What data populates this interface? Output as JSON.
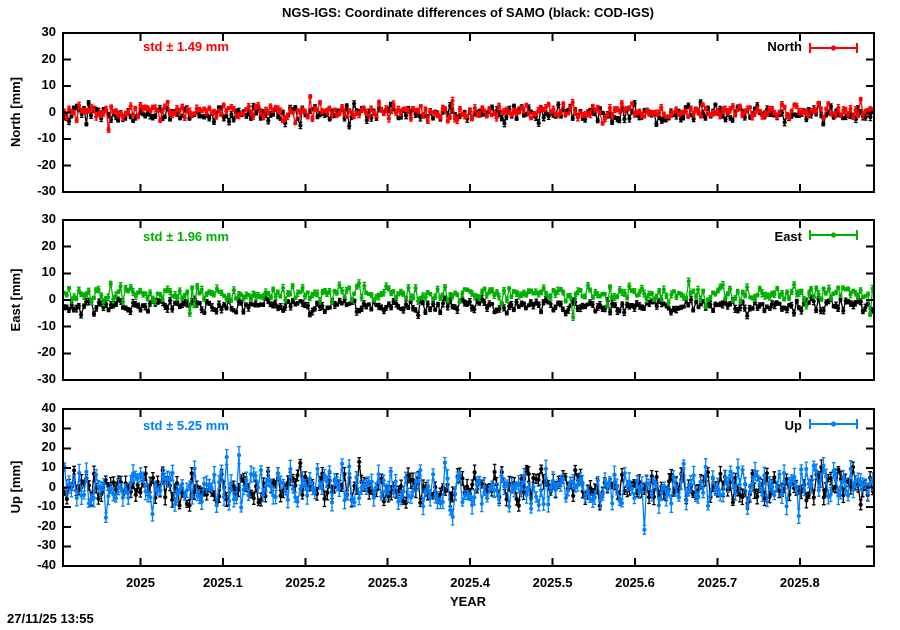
{
  "chart_data": {
    "type": "scatter",
    "title": "NGS-IGS: Coordinate differences of SAMO (black: COD-IGS)",
    "xlabel": "YEAR",
    "timestamp": "27/11/25 13:55",
    "x_range": [
      2024.906,
      2025.89
    ],
    "x_ticks": [
      {
        "v": 2025.0,
        "t": "2025"
      },
      {
        "v": 2025.1,
        "t": "2025.1"
      },
      {
        "v": 2025.2,
        "t": "2025.2"
      },
      {
        "v": 2025.3,
        "t": "2025.3"
      },
      {
        "v": 2025.4,
        "t": "2025.4"
      },
      {
        "v": 2025.5,
        "t": "2025.5"
      },
      {
        "v": 2025.6,
        "t": "2025.6"
      },
      {
        "v": 2025.7,
        "t": "2025.7"
      },
      {
        "v": 2025.8,
        "t": "2025.8"
      }
    ],
    "colors": {
      "black": "#000000",
      "red": "#ff0000",
      "green": "#00b000",
      "blue": "#0080ff"
    },
    "panels": [
      {
        "name": "north",
        "ylabel": "North [mm]",
        "ylim": [
          -30,
          30
        ],
        "y_ticks": [
          {
            "v": 30,
            "t": "30"
          },
          {
            "v": 20,
            "t": "20"
          },
          {
            "v": 10,
            "t": "10"
          },
          {
            "v": 0,
            "t": "0"
          },
          {
            "v": -10,
            "t": "-10"
          },
          {
            "v": -20,
            "t": "-20"
          },
          {
            "v": -30,
            "t": "-30"
          }
        ],
        "std_label": "std ± 1.49 mm",
        "std_mm": 1.49,
        "legend": {
          "label": "North",
          "color": "#ff0000"
        },
        "series": [
          {
            "name": "COD-IGS",
            "color": "#000000",
            "n": 330,
            "mean": -0.5,
            "std": 1.7,
            "err": 0.9,
            "seed": 101,
            "outliers": []
          },
          {
            "name": "NGS-IGS",
            "color": "#ff0000",
            "n": 330,
            "mean": 0.3,
            "std": 1.49,
            "err": 0.9,
            "seed": 202,
            "outliers": [
              [
                2024.962,
                -6.5
              ],
              [
                2025.205,
                6.0
              ],
              [
                2025.875,
                5.0
              ]
            ]
          }
        ]
      },
      {
        "name": "east",
        "ylabel": "East [mm]",
        "ylim": [
          -30,
          30
        ],
        "y_ticks": [
          {
            "v": 30,
            "t": "30"
          },
          {
            "v": 20,
            "t": "20"
          },
          {
            "v": 10,
            "t": "10"
          },
          {
            "v": 0,
            "t": "0"
          },
          {
            "v": -10,
            "t": "-10"
          },
          {
            "v": -20,
            "t": "-20"
          },
          {
            "v": -30,
            "t": "-30"
          }
        ],
        "std_label": "std ± 1.96 mm",
        "std_mm": 1.96,
        "legend": {
          "label": "East",
          "color": "#00b000"
        },
        "series": [
          {
            "name": "COD-IGS",
            "color": "#000000",
            "n": 330,
            "mean": -2.2,
            "std": 1.4,
            "err": 0.9,
            "seed": 303,
            "outliers": []
          },
          {
            "name": "NGS-IGS",
            "color": "#00b000",
            "n": 330,
            "mean": 2.2,
            "std": 1.5,
            "err": 0.9,
            "seed": 404,
            "outliers": [
              [
                2025.06,
                -5.0
              ],
              [
                2025.525,
                -6.5
              ],
              [
                2025.664,
                7.0
              ],
              [
                2025.885,
                -5.5
              ]
            ]
          }
        ]
      },
      {
        "name": "up",
        "ylabel": "Up [mm]",
        "ylim": [
          -40,
          40
        ],
        "y_ticks": [
          {
            "v": 40,
            "t": "40"
          },
          {
            "v": 30,
            "t": "30"
          },
          {
            "v": 20,
            "t": "20"
          },
          {
            "v": 10,
            "t": "10"
          },
          {
            "v": 0,
            "t": "0"
          },
          {
            "v": -10,
            "t": "-10"
          },
          {
            "v": -20,
            "t": "-20"
          },
          {
            "v": -30,
            "t": "-30"
          },
          {
            "v": -40,
            "t": "-40"
          }
        ],
        "std_label": "std ± 5.25 mm",
        "std_mm": 5.25,
        "legend": {
          "label": "Up",
          "color": "#0080ff"
        },
        "series": [
          {
            "name": "COD-IGS",
            "color": "#000000",
            "n": 330,
            "mean": 0.0,
            "std": 4.2,
            "err": 2.8,
            "seed": 505,
            "outliers": []
          },
          {
            "name": "NGS-IGS",
            "color": "#0080ff",
            "n": 330,
            "mean": 0.0,
            "std": 5.0,
            "err": 3.2,
            "seed": 606,
            "outliers": [
              [
                2024.908,
                10.5
              ],
              [
                2025.015,
                -13.5
              ],
              [
                2025.105,
                15.5
              ],
              [
                2025.118,
                16.5
              ],
              [
                2025.38,
                -15.0
              ],
              [
                2025.61,
                -21.5
              ],
              [
                2025.685,
                10.5
              ],
              [
                2025.8,
                -14.5
              ],
              [
                2025.862,
                9.5
              ]
            ]
          }
        ]
      }
    ]
  }
}
